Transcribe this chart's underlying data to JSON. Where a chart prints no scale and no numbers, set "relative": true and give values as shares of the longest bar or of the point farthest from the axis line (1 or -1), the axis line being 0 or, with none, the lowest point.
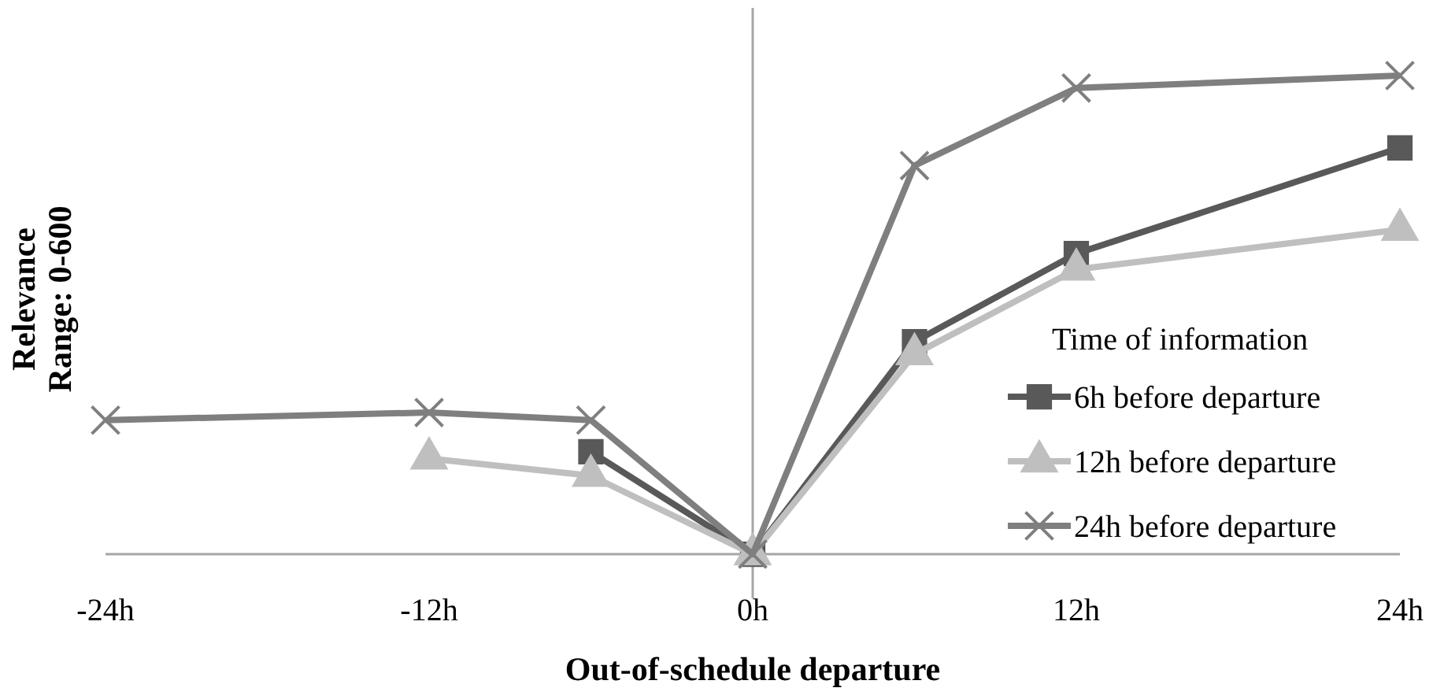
{
  "chart_data": {
    "type": "line",
    "relative": true,
    "xlabel": "Out-of-schedule departure",
    "ylabel": "Relevance\nRange: 0-600",
    "legend_title": "Time of information",
    "legend": "right",
    "xlim": [
      -24,
      24
    ],
    "xticks": [
      {
        "value": -24,
        "label": "-24h"
      },
      {
        "value": -12,
        "label": "-12h"
      },
      {
        "value": 0,
        "label": "0h"
      },
      {
        "value": 12,
        "label": "12h"
      },
      {
        "value": 24,
        "label": "24h"
      }
    ],
    "series": [
      {
        "name": "6h before departure",
        "color": "#595959",
        "marker": "square",
        "x": [
          -6,
          0,
          6,
          12,
          24
        ],
        "values": [
          0.214,
          0,
          0.444,
          0.628,
          0.849
        ]
      },
      {
        "name": "12h before departure",
        "color": "#bfbfbf",
        "marker": "triangle",
        "x": [
          -12,
          -6,
          0,
          6,
          12,
          24
        ],
        "values": [
          0.2,
          0.164,
          0,
          0.418,
          0.595,
          0.678
        ]
      },
      {
        "name": "24h before departure",
        "color": "#7f7f7f",
        "marker": "cross",
        "x": [
          -24,
          -12,
          -6,
          0,
          6,
          12,
          24
        ],
        "values": [
          0.28,
          0.296,
          0.28,
          0,
          0.812,
          0.974,
          1
        ]
      }
    ]
  }
}
